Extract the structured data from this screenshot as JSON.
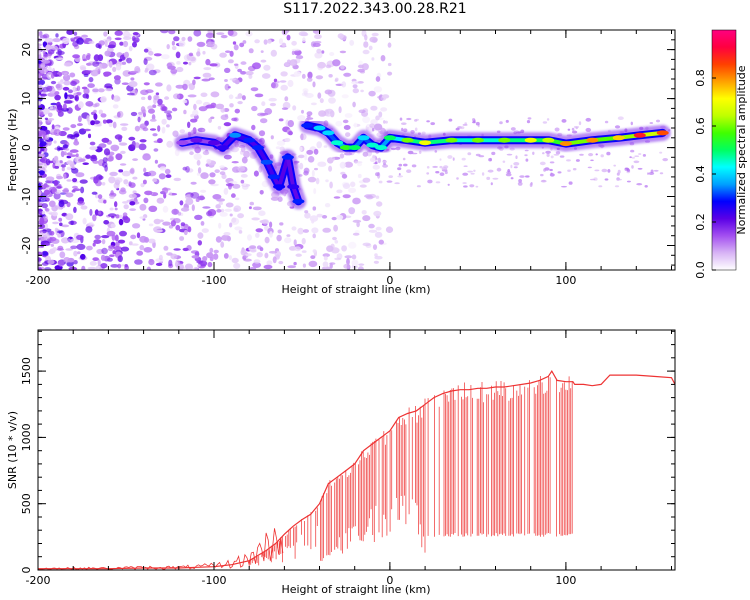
{
  "title": "S117.2022.343.00.28.R21",
  "chart_data": [
    {
      "type": "heatmap",
      "xlabel": "Height of straight line (km)",
      "ylabel": "Frequency (Hz)",
      "xlim": [
        -200,
        162
      ],
      "ylim": [
        -25,
        24
      ],
      "xticks": [
        -200,
        -100,
        0,
        100
      ],
      "yticks": [
        -20,
        -10,
        0,
        10,
        20
      ],
      "colorbar": {
        "label": "Normalized spectral amplitude",
        "range": [
          0,
          1
        ],
        "ticks": [
          "0.0",
          "0.2",
          "0.4",
          "0.6",
          "0.8"
        ],
        "colormap": [
          "#ffffff",
          "#d8b4f5",
          "#a34ff0",
          "#5a00e6",
          "#0000ff",
          "#00a0ff",
          "#00ffff",
          "#00ff60",
          "#40ff00",
          "#c0ff00",
          "#ffff00",
          "#ffa000",
          "#ff4000",
          "#ff0040",
          "#ff0080"
        ]
      },
      "ridge": [
        {
          "x": -118,
          "f": 1,
          "a": 0.15
        },
        {
          "x": -110,
          "f": 1.5,
          "a": 0.2
        },
        {
          "x": -100,
          "f": 1,
          "a": 0.22
        },
        {
          "x": -95,
          "f": 0,
          "a": 0.25
        },
        {
          "x": -88,
          "f": 2.5,
          "a": 0.35
        },
        {
          "x": -80,
          "f": 1.5,
          "a": 0.3
        },
        {
          "x": -75,
          "f": 0,
          "a": 0.3
        },
        {
          "x": -70,
          "f": -3,
          "a": 0.32
        },
        {
          "x": -66,
          "f": -6,
          "a": 0.3
        },
        {
          "x": -63,
          "f": -8,
          "a": 0.28
        },
        {
          "x": -58,
          "f": -2,
          "a": 0.3
        },
        {
          "x": -55,
          "f": -8,
          "a": 0.25
        },
        {
          "x": -52,
          "f": -11,
          "a": 0.3
        },
        {
          "x": -47,
          "f": 4.5,
          "a": 0.3
        },
        {
          "x": -40,
          "f": 4,
          "a": 0.4
        },
        {
          "x": -35,
          "f": 3,
          "a": 0.4
        },
        {
          "x": -30,
          "f": 1,
          "a": 0.45
        },
        {
          "x": -25,
          "f": 0,
          "a": 0.55
        },
        {
          "x": -20,
          "f": 0,
          "a": 0.5
        },
        {
          "x": -15,
          "f": 2,
          "a": 0.4
        },
        {
          "x": -10,
          "f": 0.5,
          "a": 0.45
        },
        {
          "x": -5,
          "f": 0,
          "a": 0.45
        },
        {
          "x": 0,
          "f": 2,
          "a": 0.5
        },
        {
          "x": 10,
          "f": 1.5,
          "a": 0.6
        },
        {
          "x": 20,
          "f": 1,
          "a": 0.7
        },
        {
          "x": 35,
          "f": 1.5,
          "a": 0.6
        },
        {
          "x": 50,
          "f": 1.5,
          "a": 0.6
        },
        {
          "x": 65,
          "f": 1.5,
          "a": 0.6
        },
        {
          "x": 80,
          "f": 1.5,
          "a": 0.7
        },
        {
          "x": 90,
          "f": 1.5,
          "a": 0.65
        },
        {
          "x": 100,
          "f": 0.8,
          "a": 0.8
        },
        {
          "x": 115,
          "f": 1.5,
          "a": 0.8
        },
        {
          "x": 130,
          "f": 2,
          "a": 0.75
        },
        {
          "x": 142,
          "f": 2.5,
          "a": 0.9
        },
        {
          "x": 155,
          "f": 3,
          "a": 0.85
        }
      ]
    },
    {
      "type": "line",
      "xlabel": "Height of straight line (km)",
      "ylabel": "SNR (10 * v/v)",
      "xlim": [
        -200,
        162
      ],
      "ylim": [
        0,
        1810
      ],
      "xticks": [
        -200,
        -100,
        0,
        100
      ],
      "yticks": [
        0,
        500,
        1000,
        1500
      ],
      "color": "#ee3333",
      "series": [
        {
          "x": [
            -200,
            -180,
            -160,
            -140,
            -120,
            -110,
            -100,
            -90,
            -80,
            -70,
            -65,
            -60,
            -55,
            -50,
            -45,
            -40,
            -35,
            -30,
            -25,
            -20,
            -15,
            -10,
            -5,
            0,
            5,
            10,
            15,
            20,
            25,
            30,
            35,
            40,
            45,
            50,
            55,
            60,
            65,
            70,
            75,
            80,
            85,
            90,
            92,
            95,
            100,
            104,
            105,
            110,
            115,
            120,
            125,
            130,
            140,
            150,
            160,
            162
          ],
          "y": [
            10,
            10,
            10,
            15,
            15,
            20,
            25,
            40,
            70,
            150,
            200,
            270,
            330,
            380,
            420,
            500,
            650,
            700,
            750,
            800,
            900,
            950,
            1000,
            1050,
            1150,
            1180,
            1200,
            1250,
            1300,
            1330,
            1350,
            1360,
            1360,
            1370,
            1370,
            1380,
            1380,
            1390,
            1400,
            1410,
            1430,
            1460,
            1500,
            1430,
            1420,
            1420,
            1400,
            1400,
            1390,
            1400,
            1470,
            1470,
            1470,
            1460,
            1450,
            1400
          ]
        }
      ],
      "noise_floor": [
        {
          "x": -40,
          "y": 100
        },
        {
          "x": -20,
          "y": 300
        },
        {
          "x": 0,
          "y": 500
        },
        {
          "x": 10,
          "y": 700
        },
        {
          "x": 20,
          "y": 250
        },
        {
          "x": 60,
          "y": 250
        },
        {
          "x": 100,
          "y": 250
        },
        {
          "x": 104,
          "y": 260
        }
      ]
    }
  ]
}
